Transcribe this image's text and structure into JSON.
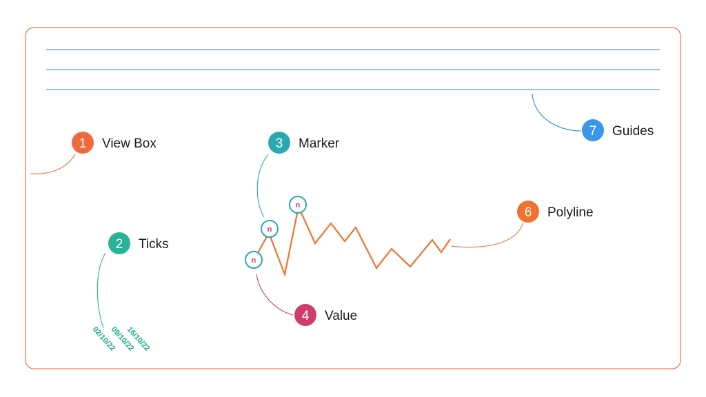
{
  "colors": {
    "frame": "#ee7a5c",
    "guides": "#2d8ed6",
    "polyline": "#f1722c",
    "marker_ring": "#2aaab0",
    "marker_text": "#d0404f",
    "tick_text": "#1fa98c"
  },
  "callouts": [
    {
      "id": "view-box",
      "number": "1",
      "label": "View Box",
      "color": "#ee6a3c"
    },
    {
      "id": "ticks",
      "number": "2",
      "label": "Ticks",
      "color": "#2ab399"
    },
    {
      "id": "marker",
      "number": "3",
      "label": "Marker",
      "color": "#2aaab0"
    },
    {
      "id": "value",
      "number": "4",
      "label": "Value",
      "color": "#cf3d6a"
    },
    {
      "id": "polyline",
      "number": "6",
      "label": "Polyline",
      "color": "#f1722c"
    },
    {
      "id": "guides",
      "number": "7",
      "label": "Guides",
      "color": "#3a97e8"
    }
  ],
  "markers": [
    {
      "letter": "n"
    },
    {
      "letter": "n"
    },
    {
      "letter": "n"
    }
  ],
  "ticks": [
    "02/10/22",
    "09/10/22",
    "16/10/22"
  ]
}
